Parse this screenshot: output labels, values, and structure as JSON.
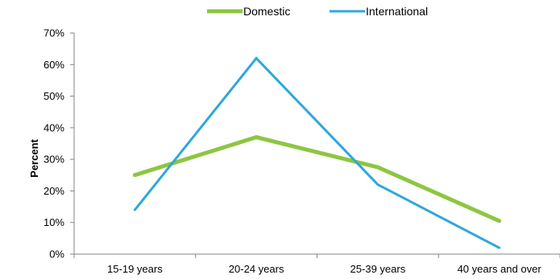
{
  "chart_data": {
    "type": "line",
    "title": "",
    "xlabel": "",
    "ylabel": "Percent",
    "categories": [
      "15-19 years",
      "20-24 years",
      "25-39 years",
      "40 years and over"
    ],
    "series": [
      {
        "name": "Domestic",
        "color": "#8dc641",
        "values": [
          25,
          37,
          27.5,
          10.5
        ]
      },
      {
        "name": "International",
        "color": "#2ea7dc",
        "values": [
          14,
          62,
          22,
          2
        ]
      }
    ],
    "ylim": [
      0,
      70
    ],
    "yticks": [
      0,
      10,
      20,
      30,
      40,
      50,
      60,
      70
    ],
    "ytick_labels": [
      "0%",
      "10%",
      "20%",
      "30%",
      "40%",
      "50%",
      "60%",
      "70%"
    ],
    "grid": false,
    "legend": "top-center"
  }
}
